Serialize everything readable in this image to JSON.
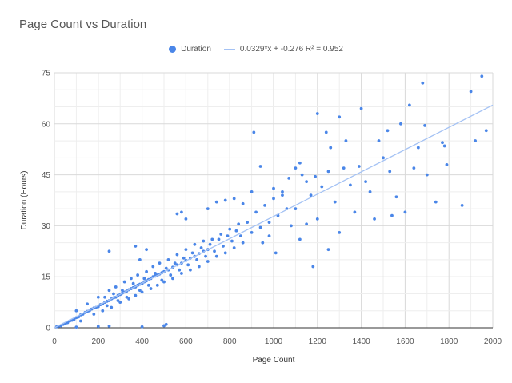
{
  "chart_data": {
    "type": "scatter",
    "title": "Page Count vs Duration",
    "xlabel": "Page Count",
    "ylabel": "Duration (Hours)",
    "xlim": [
      0,
      2000
    ],
    "ylim": [
      0,
      75
    ],
    "x_ticks": [
      "0",
      "200",
      "400",
      "600",
      "800",
      "1000",
      "1200",
      "1400",
      "1600",
      "1800",
      "2000"
    ],
    "y_ticks": [
      "0",
      "15",
      "30",
      "45",
      "60",
      "75"
    ],
    "grid": true,
    "legend_position": "top-center",
    "series": [
      {
        "name": "Duration",
        "color": "#4a86e8",
        "points": [
          [
            10,
            0.3
          ],
          [
            20,
            0.5
          ],
          [
            30,
            0.6
          ],
          [
            40,
            1.0
          ],
          [
            50,
            1.2
          ],
          [
            60,
            1.5
          ],
          [
            70,
            2.0
          ],
          [
            80,
            2.2
          ],
          [
            90,
            2.5
          ],
          [
            100,
            3.0
          ],
          [
            110,
            3.2
          ],
          [
            120,
            3.8
          ],
          [
            130,
            4.0
          ],
          [
            140,
            4.5
          ],
          [
            150,
            4.8
          ],
          [
            160,
            5.0
          ],
          [
            170,
            5.5
          ],
          [
            180,
            5.8
          ],
          [
            190,
            6.0
          ],
          [
            200,
            6.2
          ],
          [
            210,
            6.8
          ],
          [
            220,
            7.0
          ],
          [
            230,
            7.5
          ],
          [
            240,
            7.8
          ],
          [
            250,
            8.0
          ],
          [
            260,
            8.5
          ],
          [
            270,
            8.8
          ],
          [
            280,
            9.0
          ],
          [
            290,
            9.5
          ],
          [
            300,
            9.8
          ],
          [
            310,
            10.2
          ],
          [
            320,
            10.5
          ],
          [
            330,
            10.8
          ],
          [
            340,
            11.2
          ],
          [
            350,
            11.5
          ],
          [
            360,
            11.8
          ],
          [
            370,
            12.0
          ],
          [
            380,
            12.5
          ],
          [
            390,
            12.8
          ],
          [
            400,
            13.0
          ],
          [
            410,
            13.5
          ],
          [
            420,
            13.8
          ],
          [
            430,
            14.2
          ],
          [
            440,
            14.5
          ],
          [
            450,
            15.0
          ],
          [
            460,
            15.2
          ],
          [
            470,
            15.5
          ],
          [
            480,
            15.8
          ],
          [
            490,
            16.2
          ],
          [
            500,
            16.5
          ],
          [
            520,
            17.0
          ],
          [
            540,
            17.8
          ],
          [
            560,
            18.5
          ],
          [
            580,
            19.0
          ],
          [
            600,
            19.8
          ],
          [
            620,
            20.5
          ],
          [
            640,
            21.0
          ],
          [
            660,
            21.8
          ],
          [
            680,
            22.5
          ],
          [
            700,
            23.0
          ],
          [
            100,
            5.0
          ],
          [
            120,
            2.0
          ],
          [
            150,
            7.0
          ],
          [
            180,
            4.0
          ],
          [
            200,
            9.0
          ],
          [
            220,
            5.0
          ],
          [
            250,
            11.0
          ],
          [
            260,
            6.0
          ],
          [
            280,
            12.0
          ],
          [
            300,
            7.5
          ],
          [
            320,
            13.5
          ],
          [
            340,
            8.5
          ],
          [
            350,
            14.5
          ],
          [
            370,
            9.5
          ],
          [
            380,
            15.5
          ],
          [
            400,
            10.5
          ],
          [
            420,
            16.5
          ],
          [
            440,
            11.5
          ],
          [
            450,
            18.0
          ],
          [
            470,
            12.5
          ],
          [
            480,
            19.0
          ],
          [
            500,
            13.5
          ],
          [
            520,
            20.0
          ],
          [
            540,
            14.5
          ],
          [
            560,
            21.5
          ],
          [
            580,
            16.0
          ],
          [
            600,
            23.0
          ],
          [
            620,
            17.0
          ],
          [
            640,
            24.5
          ],
          [
            660,
            18.0
          ],
          [
            680,
            25.5
          ],
          [
            700,
            19.5
          ],
          [
            720,
            26.0
          ],
          [
            740,
            21.0
          ],
          [
            760,
            27.5
          ],
          [
            780,
            22.0
          ],
          [
            800,
            29.0
          ],
          [
            820,
            23.5
          ],
          [
            840,
            30.5
          ],
          [
            860,
            25.0
          ],
          [
            880,
            31.0
          ],
          [
            900,
            28.0
          ],
          [
            920,
            34.0
          ],
          [
            940,
            29.5
          ],
          [
            960,
            36.0
          ],
          [
            980,
            31.0
          ],
          [
            1000,
            38.0
          ],
          [
            1020,
            33.0
          ],
          [
            1040,
            39.0
          ],
          [
            1060,
            35.0
          ],
          [
            230,
            9.0
          ],
          [
            240,
            6.5
          ],
          [
            270,
            10.0
          ],
          [
            290,
            8.0
          ],
          [
            310,
            11.0
          ],
          [
            330,
            9.0
          ],
          [
            360,
            13.0
          ],
          [
            390,
            11.0
          ],
          [
            410,
            14.5
          ],
          [
            430,
            12.5
          ],
          [
            460,
            16.0
          ],
          [
            490,
            14.0
          ],
          [
            510,
            17.5
          ],
          [
            530,
            15.5
          ],
          [
            550,
            19.0
          ],
          [
            570,
            17.0
          ],
          [
            590,
            20.5
          ],
          [
            610,
            18.5
          ],
          [
            630,
            22.0
          ],
          [
            650,
            20.0
          ],
          [
            670,
            23.5
          ],
          [
            690,
            21.0
          ],
          [
            710,
            24.5
          ],
          [
            730,
            22.5
          ],
          [
            750,
            26.0
          ],
          [
            770,
            24.0
          ],
          [
            790,
            27.0
          ],
          [
            810,
            25.5
          ],
          [
            830,
            28.5
          ],
          [
            850,
            27.0
          ],
          [
            100,
            0.2
          ],
          [
            200,
            0.4
          ],
          [
            250,
            0.5
          ],
          [
            400,
            0.3
          ],
          [
            500,
            0.6
          ],
          [
            510,
            1.0
          ],
          [
            250,
            22.5
          ],
          [
            370,
            24.0
          ],
          [
            390,
            20.0
          ],
          [
            420,
            23.0
          ],
          [
            560,
            33.5
          ],
          [
            580,
            34.0
          ],
          [
            600,
            32.0
          ],
          [
            700,
            35.0
          ],
          [
            740,
            37.0
          ],
          [
            780,
            37.5
          ],
          [
            820,
            38.0
          ],
          [
            860,
            36.5
          ],
          [
            900,
            40.0
          ],
          [
            910,
            57.5
          ],
          [
            940,
            47.5
          ],
          [
            1000,
            41.0
          ],
          [
            1040,
            40.0
          ],
          [
            1070,
            44.0
          ],
          [
            1100,
            47.0
          ],
          [
            1120,
            48.5
          ],
          [
            1130,
            45.0
          ],
          [
            1150,
            43.0
          ],
          [
            1170,
            39.0
          ],
          [
            1190,
            44.5
          ],
          [
            1200,
            63.0
          ],
          [
            1220,
            41.5
          ],
          [
            1240,
            57.5
          ],
          [
            1250,
            46.0
          ],
          [
            1260,
            53.0
          ],
          [
            1280,
            37.0
          ],
          [
            1300,
            62.0
          ],
          [
            1320,
            47.0
          ],
          [
            1330,
            55.0
          ],
          [
            1350,
            42.0
          ],
          [
            1370,
            34.0
          ],
          [
            1390,
            47.5
          ],
          [
            1400,
            64.5
          ],
          [
            1420,
            43.0
          ],
          [
            1440,
            40.0
          ],
          [
            1460,
            32.0
          ],
          [
            1480,
            55.0
          ],
          [
            1500,
            50.0
          ],
          [
            1520,
            58.0
          ],
          [
            1530,
            46.0
          ],
          [
            1540,
            33.0
          ],
          [
            1560,
            38.5
          ],
          [
            1580,
            60.0
          ],
          [
            1600,
            34.0
          ],
          [
            1620,
            65.5
          ],
          [
            1640,
            47.0
          ],
          [
            1660,
            53.0
          ],
          [
            1680,
            72.0
          ],
          [
            1690,
            59.5
          ],
          [
            1700,
            45.0
          ],
          [
            1740,
            37.0
          ],
          [
            1770,
            54.5
          ],
          [
            1780,
            53.5
          ],
          [
            1790,
            48.0
          ],
          [
            1860,
            36.0
          ],
          [
            1900,
            69.5
          ],
          [
            1920,
            55.0
          ],
          [
            1950,
            74.0
          ],
          [
            1970,
            58.0
          ],
          [
            1180,
            18.0
          ],
          [
            1010,
            22.0
          ],
          [
            980,
            27.0
          ],
          [
            950,
            25.0
          ],
          [
            1080,
            30.0
          ],
          [
            1120,
            26.0
          ],
          [
            1250,
            23.0
          ],
          [
            1100,
            35.0
          ],
          [
            1200,
            32.0
          ],
          [
            1300,
            28.0
          ],
          [
            1150,
            30.5
          ]
        ]
      },
      {
        "name": "0.0329*x + -0.276 R² = 0.952",
        "color": "#a4c2f4",
        "type": "trendline",
        "slope": 0.0329,
        "intercept": -0.276
      }
    ]
  }
}
